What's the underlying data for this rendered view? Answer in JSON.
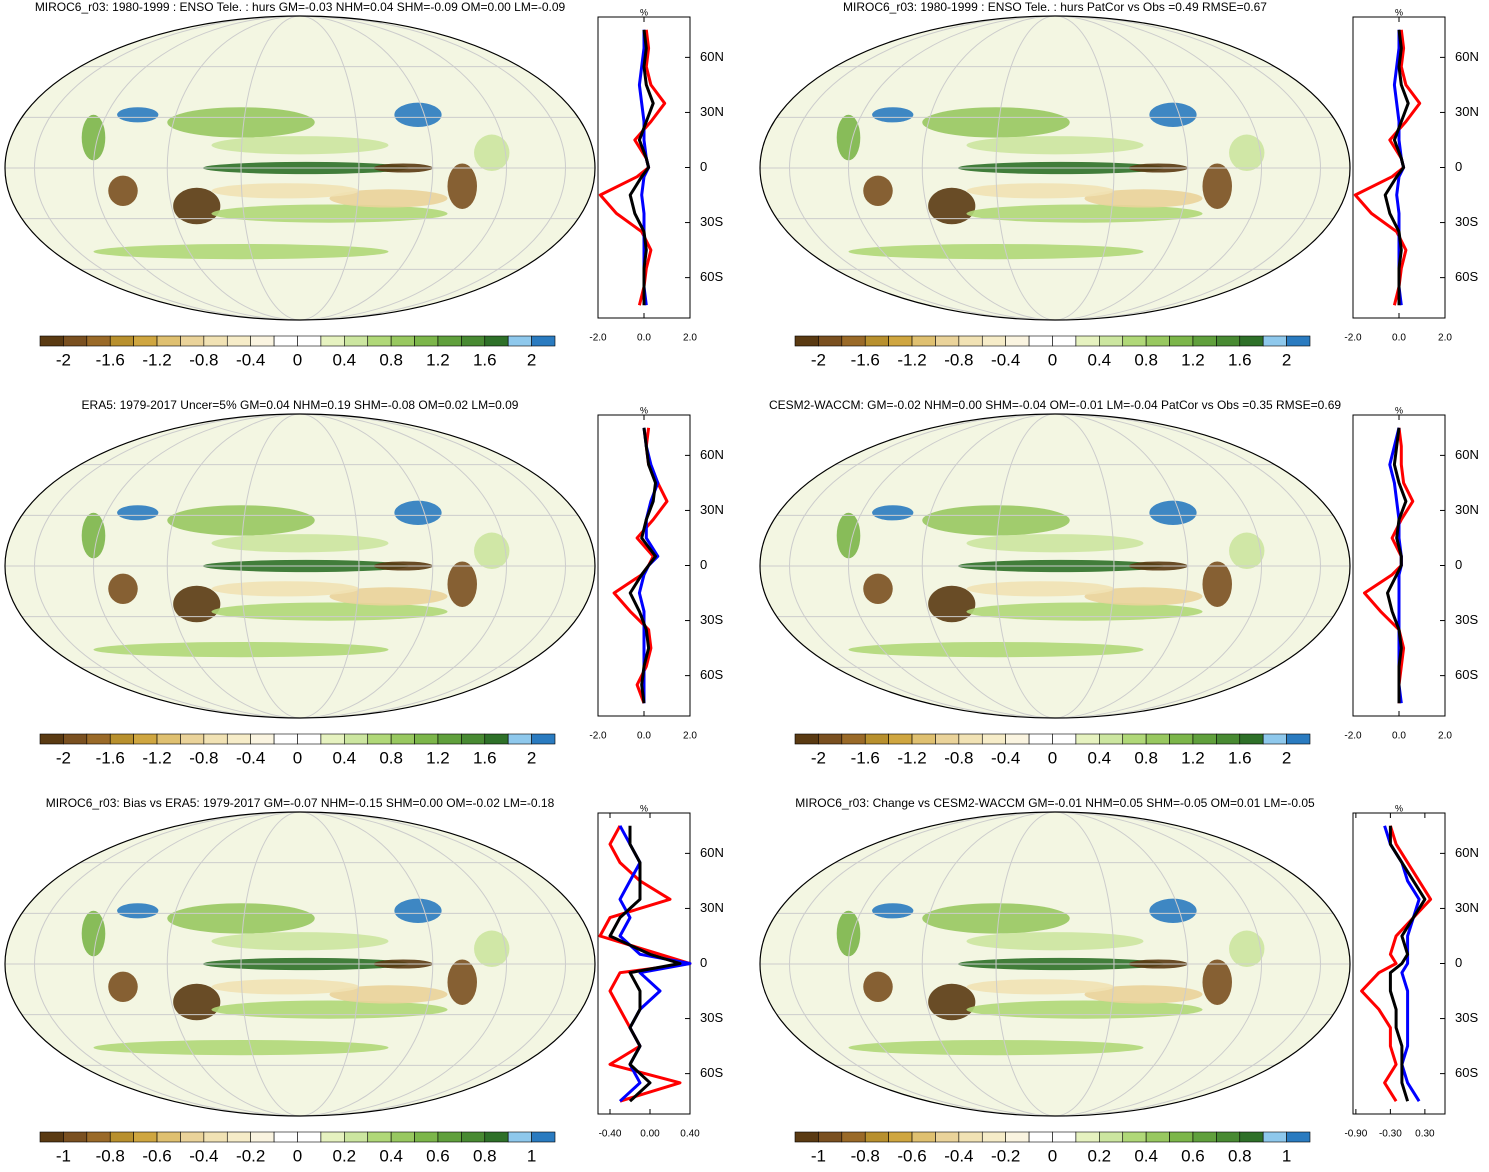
{
  "palette": [
    "#5a3a12",
    "#7a5020",
    "#9a6a28",
    "#b8902e",
    "#cfa640",
    "#dfc070",
    "#ead39a",
    "#f1e2b4",
    "#f6ecc8",
    "#faf4e0",
    "#ffffff",
    "#ffffff",
    "#e6f2c0",
    "#cce6a0",
    "#b0d878",
    "#98c860",
    "#7cb64a",
    "#60a03c",
    "#488a32",
    "#2e7028",
    "#8ec8ec",
    "#2a7bc0"
  ],
  "panels": [
    {
      "title": "MIROC6_r03: 1980-1999 : ENSO Tele. : hurs GM=-0.03 NHM=0.04 SHM=-0.09 OM=0.00 LM=-0.09",
      "unit": "%",
      "colorbar": {
        "lim": [
          -2.2,
          2.2
        ],
        "levels": [
          -2,
          -1.6,
          -1.2,
          -0.8,
          -0.4,
          0,
          0.4,
          0.8,
          1.2,
          1.6,
          2
        ]
      },
      "profile": {
        "xlim": [
          -2,
          2
        ],
        "xticks": [
          {
            "value": -2,
            "label": "-2.0"
          },
          {
            "value": 0,
            "label": "0.0"
          },
          {
            "value": 2,
            "label": "2.0"
          }
        ],
        "ylim": [
          -82,
          82
        ],
        "yticks": [
          {
            "value": 60,
            "label": "60N"
          },
          {
            "value": 30,
            "label": "30N"
          },
          0,
          {
            "value": -30,
            "label": "30S"
          },
          {
            "value": -60,
            "label": "60S"
          }
        ],
        "lat": [
          75,
          65,
          55,
          45,
          35,
          25,
          15,
          5,
          0,
          -5,
          -15,
          -25,
          -35,
          -45,
          -55,
          -65,
          -75
        ],
        "series": [
          {
            "color": "#ff0000",
            "values": [
              0.1,
              0.2,
              0.1,
              0.3,
              0.9,
              0.3,
              -0.4,
              0.1,
              0.2,
              -0.3,
              -1.9,
              -1.2,
              -0.1,
              0.3,
              0.1,
              0.0,
              -0.2
            ]
          },
          {
            "color": "#0000ff",
            "values": [
              0.0,
              0.0,
              -0.1,
              -0.2,
              -0.1,
              0.0,
              0.0,
              0.1,
              0.2,
              0.0,
              -0.1,
              0.0,
              0.0,
              0.0,
              0.0,
              0.0,
              0.1
            ]
          },
          {
            "color": "#000000",
            "values": [
              0.0,
              0.1,
              0.0,
              0.1,
              0.4,
              0.1,
              -0.2,
              0.1,
              0.2,
              -0.1,
              -0.6,
              -0.4,
              0.0,
              0.1,
              0.0,
              0.0,
              0.0
            ]
          }
        ]
      }
    },
    {
      "title": "MIROC6_r03: 1980-1999 : ENSO Tele. : hurs PatCor vs Obs =0.49 RMSE=0.67",
      "unit": "%",
      "colorbar": {
        "lim": [
          -2.2,
          2.2
        ],
        "levels": [
          -2,
          -1.6,
          -1.2,
          -0.8,
          -0.4,
          0,
          0.4,
          0.8,
          1.2,
          1.6,
          2
        ]
      },
      "profile": {
        "xlim": [
          -2,
          2
        ],
        "xticks": [
          {
            "value": -2,
            "label": "-2.0"
          },
          {
            "value": 0,
            "label": "0.0"
          },
          {
            "value": 2,
            "label": "2.0"
          }
        ],
        "ylim": [
          -82,
          82
        ],
        "yticks": [
          {
            "value": 60,
            "label": "60N"
          },
          {
            "value": 30,
            "label": "30N"
          },
          0,
          {
            "value": -30,
            "label": "30S"
          },
          {
            "value": -60,
            "label": "60S"
          }
        ],
        "lat": [
          75,
          65,
          55,
          45,
          35,
          25,
          15,
          5,
          0,
          -5,
          -15,
          -25,
          -35,
          -45,
          -55,
          -65,
          -75
        ],
        "series": [
          {
            "color": "#ff0000",
            "values": [
              0.1,
              0.2,
              0.1,
              0.3,
              0.9,
              0.3,
              -0.4,
              0.1,
              0.2,
              -0.3,
              -1.9,
              -1.2,
              -0.1,
              0.3,
              0.1,
              0.0,
              -0.2
            ]
          },
          {
            "color": "#0000ff",
            "values": [
              0.0,
              0.0,
              -0.1,
              -0.2,
              -0.1,
              0.0,
              0.0,
              0.1,
              0.2,
              0.0,
              -0.1,
              0.0,
              0.0,
              0.0,
              0.0,
              0.0,
              0.1
            ]
          },
          {
            "color": "#000000",
            "values": [
              0.0,
              0.1,
              0.0,
              0.1,
              0.4,
              0.1,
              -0.2,
              0.1,
              0.2,
              -0.1,
              -0.6,
              -0.4,
              0.0,
              0.1,
              0.0,
              0.0,
              0.0
            ]
          }
        ]
      }
    },
    {
      "title": "ERA5: 1979-2017 Uncer=5% GM=0.04 NHM=0.19 SHM=-0.08 OM=0.02 LM=0.09",
      "unit": "%",
      "colorbar": {
        "lim": [
          -2.2,
          2.2
        ],
        "levels": [
          -2,
          -1.6,
          -1.2,
          -0.8,
          -0.4,
          0,
          0.4,
          0.8,
          1.2,
          1.6,
          2
        ]
      },
      "profile": {
        "xlim": [
          -2,
          2
        ],
        "xticks": [
          {
            "value": -2,
            "label": "-2.0"
          },
          {
            "value": 0,
            "label": "0.0"
          },
          {
            "value": 2,
            "label": "2.0"
          }
        ],
        "ylim": [
          -82,
          82
        ],
        "yticks": [
          {
            "value": 60,
            "label": "60N"
          },
          {
            "value": 30,
            "label": "30N"
          },
          0,
          {
            "value": -30,
            "label": "30S"
          },
          {
            "value": -60,
            "label": "60S"
          }
        ],
        "lat": [
          75,
          65,
          55,
          45,
          35,
          25,
          15,
          5,
          0,
          -5,
          -15,
          -25,
          -35,
          -45,
          -55,
          -65,
          -75
        ],
        "series": [
          {
            "color": "#ff0000",
            "values": [
              0.2,
              0.1,
              0.2,
              0.6,
              1.0,
              0.4,
              -0.3,
              0.4,
              0.2,
              -0.1,
              -1.3,
              -0.6,
              0.2,
              0.3,
              0.1,
              -0.3,
              0.0
            ]
          },
          {
            "color": "#0000ff",
            "values": [
              0.0,
              0.1,
              0.3,
              0.6,
              0.3,
              0.1,
              0.1,
              0.6,
              0.2,
              0.0,
              -0.2,
              0.0,
              0.0,
              0.0,
              0.0,
              0.0,
              0.0
            ]
          },
          {
            "color": "#000000",
            "values": [
              0.0,
              0.1,
              0.2,
              0.5,
              0.4,
              0.1,
              -0.1,
              0.5,
              0.2,
              -0.1,
              -0.6,
              -0.2,
              0.1,
              0.2,
              0.0,
              -0.1,
              0.0
            ]
          }
        ]
      }
    },
    {
      "title": "CESM2-WACCM: GM=-0.02 NHM=0.00 SHM=-0.04 OM=-0.01 LM=-0.04 PatCor vs Obs =0.35 RMSE=0.69",
      "unit": "%",
      "colorbar": {
        "lim": [
          -2.2,
          2.2
        ],
        "levels": [
          -2,
          -1.6,
          -1.2,
          -0.8,
          -0.4,
          0,
          0.4,
          0.8,
          1.2,
          1.6,
          2
        ]
      },
      "profile": {
        "xlim": [
          -2,
          2
        ],
        "xticks": [
          {
            "value": -2,
            "label": "-2.0"
          },
          {
            "value": 0,
            "label": "0.0"
          },
          {
            "value": 2,
            "label": "2.0"
          }
        ],
        "ylim": [
          -82,
          82
        ],
        "yticks": [
          {
            "value": 60,
            "label": "60N"
          },
          {
            "value": 30,
            "label": "30N"
          },
          0,
          {
            "value": -30,
            "label": "30S"
          },
          {
            "value": -60,
            "label": "60S"
          }
        ],
        "lat": [
          75,
          65,
          55,
          45,
          35,
          25,
          15,
          5,
          0,
          -5,
          -15,
          -25,
          -35,
          -45,
          -55,
          -65,
          -75
        ],
        "series": [
          {
            "color": "#ff0000",
            "values": [
              0.0,
              0.1,
              0.1,
              0.2,
              0.6,
              0.1,
              -0.3,
              0.1,
              0.1,
              -0.3,
              -1.5,
              -0.8,
              0.0,
              0.2,
              0.1,
              0.0,
              0.0
            ]
          },
          {
            "color": "#0000ff",
            "values": [
              0.0,
              -0.2,
              -0.4,
              -0.2,
              -0.1,
              0.0,
              0.0,
              0.1,
              0.1,
              0.0,
              0.0,
              0.0,
              0.0,
              0.0,
              0.0,
              0.0,
              0.1
            ]
          },
          {
            "color": "#000000",
            "values": [
              0.0,
              -0.1,
              -0.2,
              0.0,
              0.3,
              0.0,
              -0.1,
              0.1,
              0.1,
              -0.1,
              -0.5,
              -0.3,
              0.0,
              0.1,
              0.0,
              0.0,
              0.0
            ]
          }
        ]
      }
    },
    {
      "title": "MIROC6_r03: Bias vs ERA5: 1979-2017 GM=-0.07 NHM=-0.15 SHM=0.00 OM=-0.02 LM=-0.18",
      "unit": "%",
      "colorbar": {
        "lim": [
          -1.1,
          1.1
        ],
        "levels": [
          -1,
          -0.8,
          -0.6,
          -0.4,
          -0.2,
          0,
          0.2,
          0.4,
          0.6,
          0.8,
          1
        ]
      },
      "profile": {
        "xlim": [
          -0.52,
          0.4
        ],
        "xticks": [
          {
            "value": -0.4,
            "label": "-0.40"
          },
          {
            "value": 0,
            "label": "0.00"
          },
          {
            "value": 0.4,
            "label": "0.40"
          }
        ],
        "ylim": [
          -82,
          82
        ],
        "yticks": [
          {
            "value": 60,
            "label": "60N"
          },
          {
            "value": 30,
            "label": "30N"
          },
          0,
          {
            "value": -30,
            "label": "30S"
          },
          {
            "value": -60,
            "label": "60S"
          }
        ],
        "lat": [
          75,
          65,
          55,
          45,
          35,
          25,
          15,
          5,
          0,
          -5,
          -15,
          -25,
          -35,
          -45,
          -55,
          -65,
          -75
        ],
        "series": [
          {
            "color": "#ff0000",
            "values": [
              -0.3,
              -0.4,
              -0.3,
              -0.1,
              0.2,
              -0.4,
              -0.5,
              0.1,
              0.4,
              -0.3,
              -0.4,
              -0.3,
              -0.2,
              -0.1,
              -0.4,
              0.3,
              -0.3
            ]
          },
          {
            "color": "#0000ff",
            "values": [
              -0.3,
              -0.2,
              -0.1,
              -0.2,
              -0.3,
              -0.2,
              -0.3,
              -0.1,
              0.4,
              -0.1,
              0.1,
              -0.1,
              -0.2,
              -0.1,
              -0.2,
              -0.1,
              -0.3
            ]
          },
          {
            "color": "#000000",
            "values": [
              -0.2,
              -0.2,
              -0.1,
              -0.1,
              -0.1,
              -0.3,
              -0.4,
              0.0,
              0.3,
              -0.2,
              -0.1,
              -0.1,
              -0.2,
              -0.1,
              -0.2,
              0.0,
              -0.2
            ]
          }
        ]
      }
    },
    {
      "title": "MIROC6_r03: Change vs CESM2-WACCM GM=-0.01 NHM=0.05 SHM=-0.05 OM=0.01 LM=-0.05",
      "unit": "%",
      "colorbar": {
        "lim": [
          -1.1,
          1.1
        ],
        "levels": [
          -1,
          -0.8,
          -0.6,
          -0.4,
          -0.2,
          0,
          0.2,
          0.4,
          0.6,
          0.8,
          1
        ]
      },
      "profile": {
        "xlim": [
          -0.95,
          0.65
        ],
        "xticks": [
          {
            "value": -0.9,
            "label": "-0.90"
          },
          {
            "value": -0.3,
            "label": "-0.30"
          },
          {
            "value": 0.3,
            "label": "0.30"
          }
        ],
        "ylim": [
          -82,
          82
        ],
        "yticks": [
          {
            "value": 60,
            "label": "60N"
          },
          {
            "value": 30,
            "label": "30N"
          },
          0,
          {
            "value": -30,
            "label": "30S"
          },
          {
            "value": -60,
            "label": "60S"
          }
        ],
        "lat": [
          75,
          65,
          55,
          45,
          35,
          25,
          15,
          5,
          0,
          -5,
          -15,
          -25,
          -35,
          -45,
          -55,
          -65,
          -75
        ],
        "series": [
          {
            "color": "#ff0000",
            "values": [
              -0.3,
              -0.2,
              0.0,
              0.2,
              0.4,
              0.1,
              -0.2,
              -0.3,
              -0.2,
              -0.5,
              -0.8,
              -0.5,
              -0.3,
              -0.3,
              -0.2,
              -0.4,
              -0.2
            ]
          },
          {
            "color": "#0000ff",
            "values": [
              -0.4,
              -0.3,
              -0.1,
              0.0,
              0.2,
              0.1,
              0.0,
              0.0,
              0.0,
              -0.1,
              0.0,
              0.0,
              0.0,
              0.0,
              -0.1,
              0.0,
              0.2
            ]
          },
          {
            "color": "#000000",
            "values": [
              -0.3,
              -0.3,
              -0.1,
              0.1,
              0.3,
              0.1,
              -0.1,
              0.0,
              -0.1,
              -0.3,
              -0.3,
              -0.2,
              -0.2,
              -0.1,
              -0.1,
              -0.1,
              0.0
            ]
          }
        ]
      }
    }
  ]
}
